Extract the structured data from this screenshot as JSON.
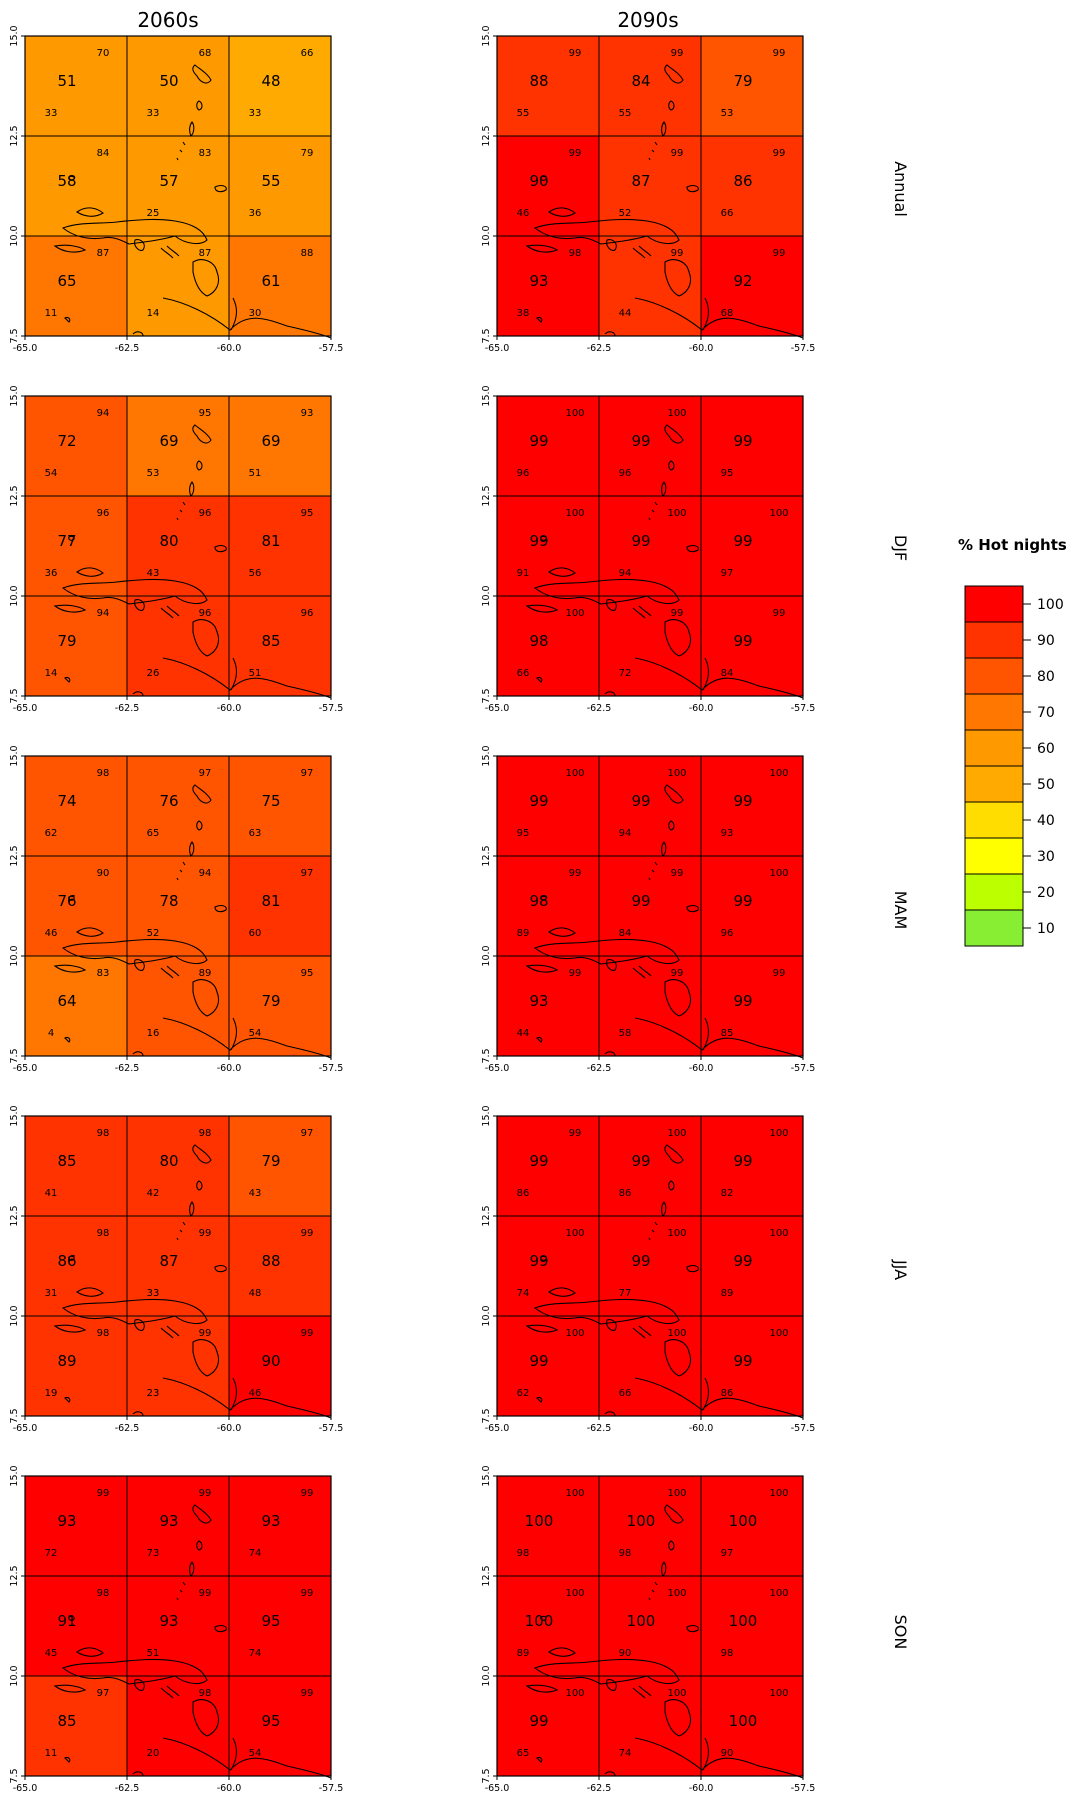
{
  "columns": [
    {
      "label": "2060s"
    },
    {
      "label": "2090s"
    }
  ],
  "rows": [
    {
      "label": "Annual"
    },
    {
      "label": "DJF"
    },
    {
      "label": "MAM"
    },
    {
      "label": "JJA"
    },
    {
      "label": "SON"
    }
  ],
  "axes": {
    "x_ticks": [
      "-65.0",
      "-62.5",
      "-60.0",
      "-57.5"
    ],
    "y_ticks": [
      "7.5",
      "10.0",
      "12.5",
      "15.0"
    ]
  },
  "legend": {
    "title": "% Hot nights",
    "bins": [
      {
        "label": "100",
        "color": "#ff0000"
      },
      {
        "label": "90",
        "color": "#ff3300"
      },
      {
        "label": "80",
        "color": "#ff5500"
      },
      {
        "label": "70",
        "color": "#ff7700"
      },
      {
        "label": "60",
        "color": "#ff9900"
      },
      {
        "label": "50",
        "color": "#ffaa00"
      },
      {
        "label": "40",
        "color": "#ffdd00"
      },
      {
        "label": "30",
        "color": "#ffff00"
      },
      {
        "label": "20",
        "color": "#bbff00"
      },
      {
        "label": "10",
        "color": "#88ee33"
      }
    ]
  },
  "maps": [
    {
      "row": 0,
      "col": 0,
      "cells": [
        {
          "main": "51",
          "max": "70",
          "min": "33"
        },
        {
          "main": "50",
          "max": "68",
          "min": "33"
        },
        {
          "main": "48",
          "max": "66",
          "min": "33"
        },
        {
          "main": "58",
          "max": "84",
          "min": ""
        },
        {
          "main": "57",
          "max": "83",
          "min": "25"
        },
        {
          "main": "55",
          "max": "79",
          "min": "36"
        },
        {
          "main": "65",
          "max": "87",
          "min": "11"
        },
        {
          "main": "",
          "max": "87",
          "min": "14"
        },
        {
          "main": "61",
          "max": "88",
          "min": "30"
        }
      ]
    },
    {
      "row": 0,
      "col": 1,
      "cells": [
        {
          "main": "88",
          "max": "99",
          "min": "55"
        },
        {
          "main": "84",
          "max": "99",
          "min": "55"
        },
        {
          "main": "79",
          "max": "99",
          "min": "53"
        },
        {
          "main": "90",
          "max": "99",
          "min": "46"
        },
        {
          "main": "87",
          "max": "99",
          "min": "52"
        },
        {
          "main": "86",
          "max": "99",
          "min": "66"
        },
        {
          "main": "93",
          "max": "98",
          "min": "38"
        },
        {
          "main": "",
          "max": "99",
          "min": "44"
        },
        {
          "main": "92",
          "max": "99",
          "min": "68"
        }
      ]
    },
    {
      "row": 1,
      "col": 0,
      "cells": [
        {
          "main": "72",
          "max": "94",
          "min": "54"
        },
        {
          "main": "69",
          "max": "95",
          "min": "53"
        },
        {
          "main": "69",
          "max": "93",
          "min": "51"
        },
        {
          "main": "77",
          "max": "96",
          "min": "36"
        },
        {
          "main": "80",
          "max": "96",
          "min": "43"
        },
        {
          "main": "81",
          "max": "95",
          "min": "56"
        },
        {
          "main": "79",
          "max": "94",
          "min": "14"
        },
        {
          "main": "",
          "max": "96",
          "min": "26"
        },
        {
          "main": "85",
          "max": "96",
          "min": "51"
        }
      ]
    },
    {
      "row": 1,
      "col": 1,
      "cells": [
        {
          "main": "99",
          "max": "100",
          "min": "96"
        },
        {
          "main": "99",
          "max": "100",
          "min": "96"
        },
        {
          "main": "99",
          "max": "",
          "min": "95"
        },
        {
          "main": "99",
          "max": "100",
          "min": "91"
        },
        {
          "main": "99",
          "max": "100",
          "min": "94"
        },
        {
          "main": "99",
          "max": "100",
          "min": "97"
        },
        {
          "main": "98",
          "max": "100",
          "min": "66"
        },
        {
          "main": "",
          "max": "99",
          "min": "72"
        },
        {
          "main": "99",
          "max": "99",
          "min": "84"
        }
      ]
    },
    {
      "row": 2,
      "col": 0,
      "cells": [
        {
          "main": "74",
          "max": "98",
          "min": "62"
        },
        {
          "main": "76",
          "max": "97",
          "min": "65"
        },
        {
          "main": "75",
          "max": "97",
          "min": "63"
        },
        {
          "main": "76",
          "max": "90",
          "min": "46"
        },
        {
          "main": "78",
          "max": "94",
          "min": "52"
        },
        {
          "main": "81",
          "max": "97",
          "min": "60"
        },
        {
          "main": "64",
          "max": "83",
          "min": "4"
        },
        {
          "main": "",
          "max": "89",
          "min": "16"
        },
        {
          "main": "79",
          "max": "95",
          "min": "54"
        }
      ]
    },
    {
      "row": 2,
      "col": 1,
      "cells": [
        {
          "main": "99",
          "max": "100",
          "min": "95"
        },
        {
          "main": "99",
          "max": "100",
          "min": "94"
        },
        {
          "main": "99",
          "max": "100",
          "min": "93"
        },
        {
          "main": "98",
          "max": "99",
          "min": "89"
        },
        {
          "main": "99",
          "max": "99",
          "min": "84"
        },
        {
          "main": "99",
          "max": "100",
          "min": "96"
        },
        {
          "main": "93",
          "max": "99",
          "min": "44"
        },
        {
          "main": "",
          "max": "99",
          "min": "58"
        },
        {
          "main": "99",
          "max": "99",
          "min": "85"
        }
      ]
    },
    {
      "row": 3,
      "col": 0,
      "cells": [
        {
          "main": "85",
          "max": "98",
          "min": "41"
        },
        {
          "main": "80",
          "max": "98",
          "min": "42"
        },
        {
          "main": "79",
          "max": "97",
          "min": "43"
        },
        {
          "main": "86",
          "max": "98",
          "min": "31"
        },
        {
          "main": "87",
          "max": "99",
          "min": "33"
        },
        {
          "main": "88",
          "max": "99",
          "min": "48"
        },
        {
          "main": "89",
          "max": "98",
          "min": "19"
        },
        {
          "main": "",
          "max": "99",
          "min": "23"
        },
        {
          "main": "90",
          "max": "99",
          "min": "46"
        }
      ]
    },
    {
      "row": 3,
      "col": 1,
      "cells": [
        {
          "main": "99",
          "max": "99",
          "min": "86"
        },
        {
          "main": "99",
          "max": "100",
          "min": "86"
        },
        {
          "main": "99",
          "max": "100",
          "min": "82"
        },
        {
          "main": "99",
          "max": "100",
          "min": "74"
        },
        {
          "main": "99",
          "max": "100",
          "min": "77"
        },
        {
          "main": "99",
          "max": "100",
          "min": "89"
        },
        {
          "main": "99",
          "max": "100",
          "min": "62"
        },
        {
          "main": "",
          "max": "100",
          "min": "66"
        },
        {
          "main": "99",
          "max": "100",
          "min": "86"
        }
      ]
    },
    {
      "row": 4,
      "col": 0,
      "cells": [
        {
          "main": "93",
          "max": "99",
          "min": "72"
        },
        {
          "main": "93",
          "max": "99",
          "min": "73"
        },
        {
          "main": "93",
          "max": "99",
          "min": "74"
        },
        {
          "main": "91",
          "max": "98",
          "min": "45"
        },
        {
          "main": "93",
          "max": "99",
          "min": "51"
        },
        {
          "main": "95",
          "max": "99",
          "min": "74"
        },
        {
          "main": "85",
          "max": "97",
          "min": "11"
        },
        {
          "main": "",
          "max": "98",
          "min": "20"
        },
        {
          "main": "95",
          "max": "99",
          "min": "54"
        }
      ]
    },
    {
      "row": 4,
      "col": 1,
      "cells": [
        {
          "main": "100",
          "max": "100",
          "min": "98"
        },
        {
          "main": "100",
          "max": "100",
          "min": "98"
        },
        {
          "main": "100",
          "max": "100",
          "min": "97"
        },
        {
          "main": "100",
          "max": "100",
          "min": "89"
        },
        {
          "main": "100",
          "max": "100",
          "min": "90"
        },
        {
          "main": "100",
          "max": "100",
          "min": "98"
        },
        {
          "main": "99",
          "max": "100",
          "min": "65"
        },
        {
          "main": "",
          "max": "100",
          "min": "74"
        },
        {
          "main": "100",
          "max": "100",
          "min": "90"
        }
      ]
    }
  ]
}
